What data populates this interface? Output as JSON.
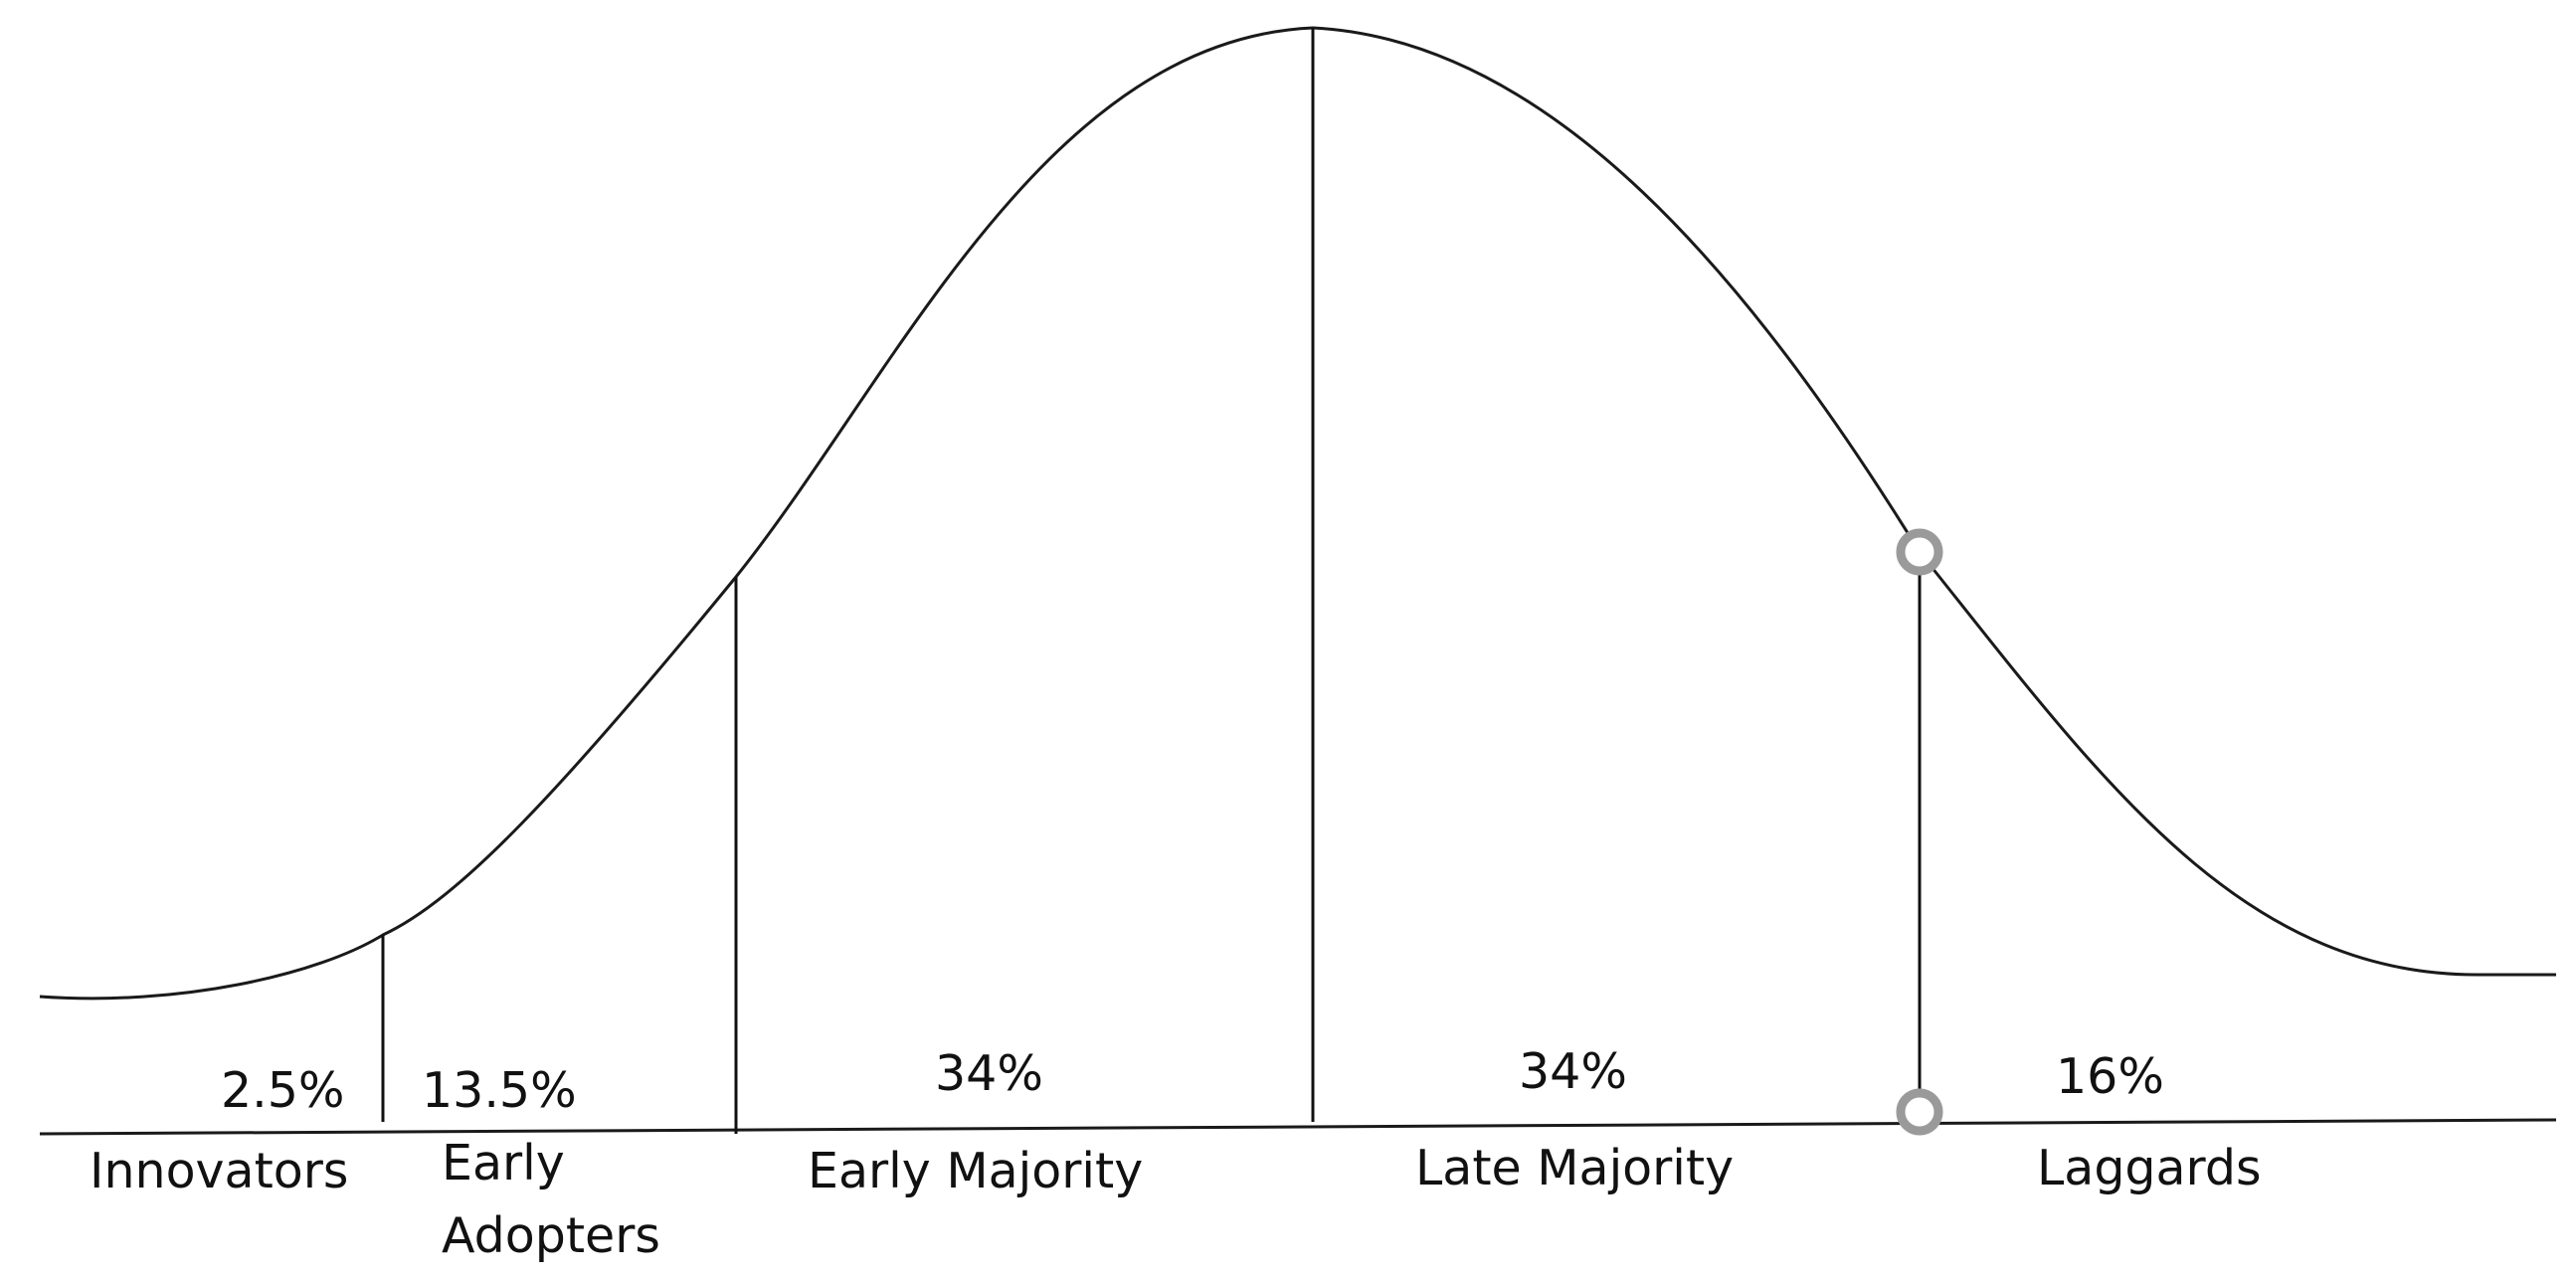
{
  "segments": [
    {
      "name": "Innovators",
      "percent": "2.5%"
    },
    {
      "name": "Early Adopters",
      "name_line1": "Early",
      "name_line2": "Adopters",
      "percent": "13.5%"
    },
    {
      "name": "Early Majority",
      "percent": "34%"
    },
    {
      "name": "Late Majority",
      "percent": "34%"
    },
    {
      "name": "Laggards",
      "percent": "16%"
    }
  ],
  "colors": {
    "curve": "#1a1a1a",
    "divider": "#111111",
    "baseline": "#1a1a1a",
    "marker_stroke": "#9a9a9a",
    "marker_fill": "#ffffff",
    "text": "#111111"
  },
  "markers": [
    "curve-marker",
    "baseline-marker"
  ]
}
